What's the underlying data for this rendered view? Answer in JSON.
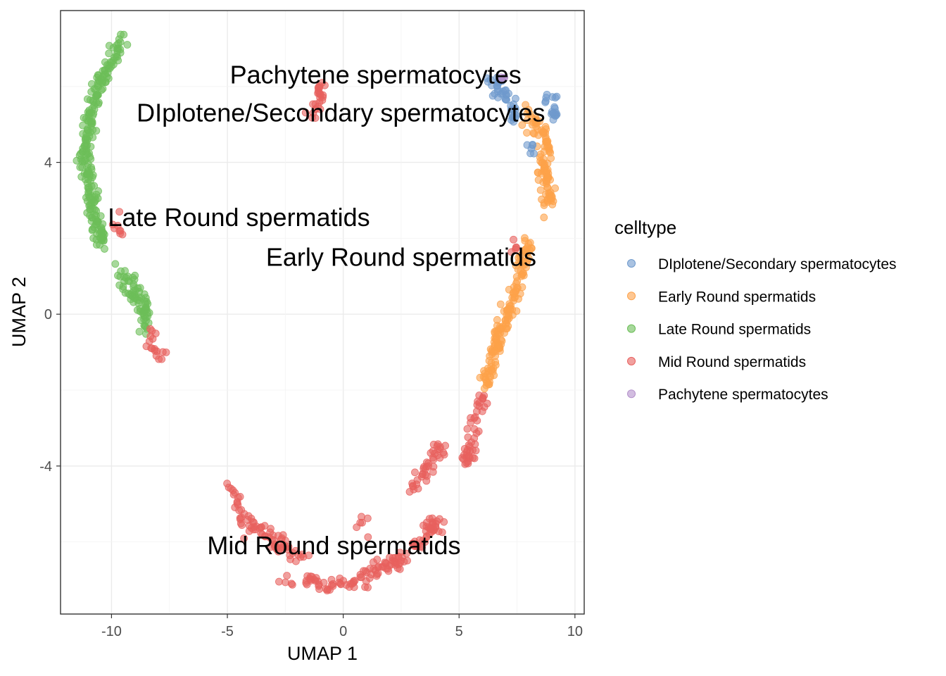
{
  "chart_data": {
    "type": "scatter",
    "xlabel": "UMAP 1",
    "ylabel": "UMAP 2",
    "xlim": [
      -12.2,
      10.4
    ],
    "ylim": [
      -7.9,
      8.0
    ],
    "x_ticks": [
      -10,
      -5,
      0,
      5,
      10
    ],
    "x_tick_labels": [
      "-10",
      "-5",
      "0",
      "5",
      "10"
    ],
    "y_ticks": [
      -4,
      0,
      4
    ],
    "y_tick_labels": [
      "-4",
      "0",
      "4"
    ],
    "grid": true,
    "legend": {
      "title": "celltype",
      "position": "right",
      "entries": [
        {
          "label": "DIplotene/Secondary spermatocytes",
          "color": "#6f9acd"
        },
        {
          "label": "Early Round spermatids",
          "color": "#fda24a"
        },
        {
          "label": "Late Round spermatids",
          "color": "#6cbe58"
        },
        {
          "label": "Mid Round spermatids",
          "color": "#e8605e"
        },
        {
          "label": "Pachytene spermatocytes",
          "color": "#b491cb"
        }
      ]
    },
    "annotations": [
      {
        "text": "Pachytene spermatocytes",
        "x": 1.4,
        "y": 6.3
      },
      {
        "text": "DIplotene/Secondary spermatocytes",
        "x": -0.1,
        "y": 5.3
      },
      {
        "text": "Late Round spermatids",
        "x": -4.5,
        "y": 2.55
      },
      {
        "text": "Early Round spermatids",
        "x": 2.5,
        "y": 1.5
      },
      {
        "text": "Mid Round spermatids",
        "x": -0.4,
        "y": -6.1
      }
    ],
    "series": [
      {
        "name": "Late Round spermatids",
        "color": "#6cbe58",
        "segments": [
          [
            [
              -9.6,
              7.2
            ],
            [
              -9.9,
              6.8
            ],
            [
              -10.3,
              6.4
            ],
            [
              -10.6,
              5.9
            ],
            [
              -10.9,
              5.3
            ],
            [
              -11.0,
              4.7
            ],
            [
              -11.1,
              4.0
            ],
            [
              -10.9,
              3.3
            ],
            [
              -10.8,
              2.7
            ],
            [
              -10.6,
              2.3
            ],
            [
              -10.3,
              1.8
            ]
          ],
          [
            [
              -9.6,
              1.2
            ],
            [
              -9.3,
              0.9
            ],
            [
              -8.9,
              0.5
            ],
            [
              -8.6,
              0.2
            ],
            [
              -8.5,
              -0.3
            ]
          ]
        ],
        "spread": 0.14,
        "count": 300
      },
      {
        "name": "Mid Round spermatids",
        "color": "#e8605e",
        "segments": [
          [
            [
              -1.0,
              6.1
            ],
            [
              -1.0,
              5.6
            ],
            [
              -1.2,
              5.2
            ],
            [
              -1.5,
              5.1
            ]
          ],
          [
            [
              -10.1,
              2.3
            ],
            [
              -9.7,
              2.3
            ]
          ],
          [
            [
              -8.3,
              -0.5
            ],
            [
              -8.1,
              -0.9
            ],
            [
              -7.9,
              -1.2
            ]
          ],
          [
            [
              -4.8,
              -4.6
            ],
            [
              -4.4,
              -5.3
            ],
            [
              -3.8,
              -5.7
            ],
            [
              -3.0,
              -5.9
            ],
            [
              -2.4,
              -6.2
            ],
            [
              -1.7,
              -6.4
            ]
          ],
          [
            [
              -2.6,
              -7.0
            ],
            [
              -2.4,
              -7.1
            ]
          ],
          [
            [
              -1.7,
              -7.0
            ],
            [
              -1.0,
              -7.1
            ],
            [
              0.0,
              -7.1
            ],
            [
              0.8,
              -6.9
            ],
            [
              1.6,
              -6.7
            ],
            [
              2.3,
              -6.5
            ],
            [
              3.1,
              -6.1
            ],
            [
              3.6,
              -5.7
            ],
            [
              4.2,
              -5.4
            ]
          ],
          [
            [
              0.7,
              -5.3
            ],
            [
              0.9,
              -5.5
            ]
          ],
          [
            [
              2.8,
              -4.7
            ],
            [
              3.3,
              -4.4
            ],
            [
              3.8,
              -3.9
            ],
            [
              4.3,
              -3.5
            ]
          ],
          [
            [
              5.1,
              -4.2
            ],
            [
              5.3,
              -3.9
            ],
            [
              5.6,
              -3.3
            ],
            [
              5.6,
              -2.7
            ],
            [
              5.8,
              -2.4
            ],
            [
              6.0,
              -2.2
            ]
          ],
          [
            [
              7.4,
              1.9
            ],
            [
              7.5,
              1.7
            ]
          ]
        ],
        "spread": 0.13,
        "count": 360
      },
      {
        "name": "Early Round spermatids",
        "color": "#fda24a",
        "segments": [
          [
            [
              6.1,
              -1.9
            ],
            [
              6.4,
              -1.3
            ],
            [
              6.7,
              -0.6
            ],
            [
              7.0,
              -0.1
            ],
            [
              7.3,
              0.3
            ],
            [
              7.6,
              0.9
            ],
            [
              7.8,
              1.4
            ],
            [
              8.0,
              1.9
            ]
          ],
          [
            [
              8.0,
              5.3
            ],
            [
              8.4,
              4.9
            ],
            [
              8.8,
              4.4
            ],
            [
              8.6,
              3.8
            ],
            [
              8.9,
              3.3
            ],
            [
              8.8,
              2.8
            ]
          ]
        ],
        "spread": 0.13,
        "count": 260
      },
      {
        "name": "DIplotene/Secondary spermatocytes",
        "color": "#6f9acd",
        "segments": [
          [
            [
              6.2,
              6.2
            ],
            [
              6.6,
              6.0
            ],
            [
              7.0,
              5.8
            ],
            [
              7.3,
              5.4
            ],
            [
              7.4,
              5.1
            ]
          ],
          [
            [
              8.8,
              5.8
            ],
            [
              9.1,
              5.6
            ],
            [
              9.1,
              5.2
            ]
          ],
          [
            [
              8.0,
              4.5
            ],
            [
              8.2,
              4.4
            ]
          ]
        ],
        "spread": 0.1,
        "count": 70
      },
      {
        "name": "Pachytene spermatocytes",
        "color": "#b491cb",
        "segments": [
          [
            [
              6.8,
              6.3
            ],
            [
              6.9,
              6.2
            ]
          ]
        ],
        "spread": 0.05,
        "count": 4
      }
    ]
  }
}
